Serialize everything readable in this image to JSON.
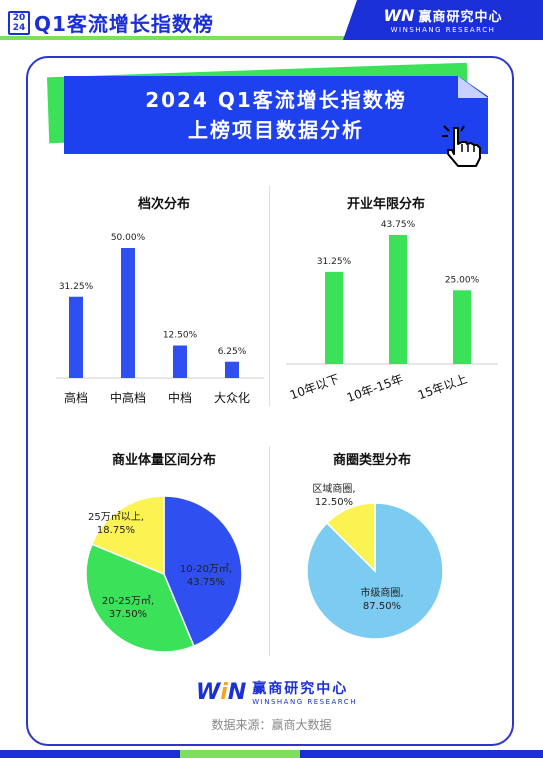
{
  "header": {
    "year_top": "20",
    "year_bottom": "24",
    "title": "Q1客流增长指数榜",
    "logo_mark": "WN",
    "logo_cn": "赢商研究中心",
    "logo_en": "WINSHANG RESEARCH"
  },
  "banner": {
    "line1": "2024 Q1客流增长指数榜",
    "line2": "上榜项目数据分析"
  },
  "colors": {
    "brand_blue": "#1b2fd6",
    "bar_blue": "#2f4ff0",
    "bar_green": "#3ce15a",
    "pie_yellow": "#fbf351",
    "pie_light_blue": "#7ccbf0"
  },
  "chart_data": [
    {
      "type": "bar",
      "title": "档次分布",
      "categories": [
        "高档",
        "中高档",
        "中档",
        "大众化"
      ],
      "values": [
        31.25,
        50.0,
        12.5,
        6.25
      ],
      "labels": [
        "31.25%",
        "50.00%",
        "12.50%",
        "6.25%"
      ],
      "color": "#2f4ff0"
    },
    {
      "type": "bar",
      "title": "开业年限分布",
      "categories": [
        "10年以下",
        "10年-15年",
        "15年以上"
      ],
      "values": [
        31.25,
        43.75,
        25.0
      ],
      "labels": [
        "31.25%",
        "43.75%",
        "25.00%"
      ],
      "color": "#3ce15a"
    },
    {
      "type": "pie",
      "title": "商业体量区间分布",
      "slices": [
        {
          "name": "10-20万㎡",
          "value": 43.75,
          "label": "43.75%",
          "color": "#2f4ff0"
        },
        {
          "name": "20-25万㎡",
          "value": 37.5,
          "label": "37.50%",
          "color": "#3ce15a"
        },
        {
          "name": "25万㎡以上",
          "value": 18.75,
          "label": "18.75%",
          "color": "#fbf351"
        }
      ]
    },
    {
      "type": "pie",
      "title": "商圈类型分布",
      "slices": [
        {
          "name": "市级商圈",
          "value": 87.5,
          "label": "87.50%",
          "color": "#7ccbf0"
        },
        {
          "name": "区域商圈",
          "value": 12.5,
          "label": "12.50%",
          "color": "#fbf351"
        }
      ]
    }
  ],
  "footer": {
    "logo_mark_w": "W",
    "logo_mark_i": "i",
    "logo_mark_n": "N",
    "logo_cn": "赢商研究中心",
    "logo_en": "WINSHANG RESEARCH",
    "source": "数据来源：赢商大数据"
  }
}
